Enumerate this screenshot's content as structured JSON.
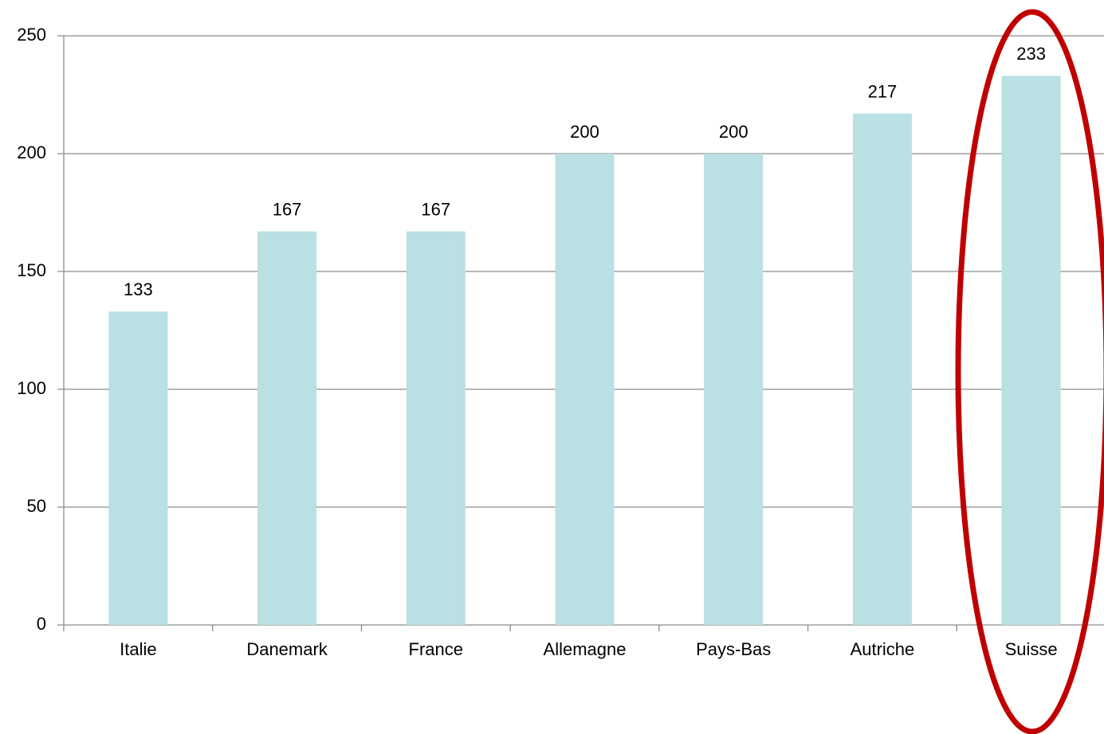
{
  "chart_data": {
    "type": "bar",
    "categories": [
      "Italie",
      "Danemark",
      "France",
      "Allemagne",
      "Pays-Bas",
      "Autriche",
      "Suisse"
    ],
    "values": [
      133,
      167,
      167,
      200,
      200,
      217,
      233
    ],
    "color": "#b9e0e3",
    "ylim": [
      0,
      250
    ],
    "yticks": [
      0,
      50,
      100,
      150,
      200,
      250
    ],
    "grid": true
  }
}
